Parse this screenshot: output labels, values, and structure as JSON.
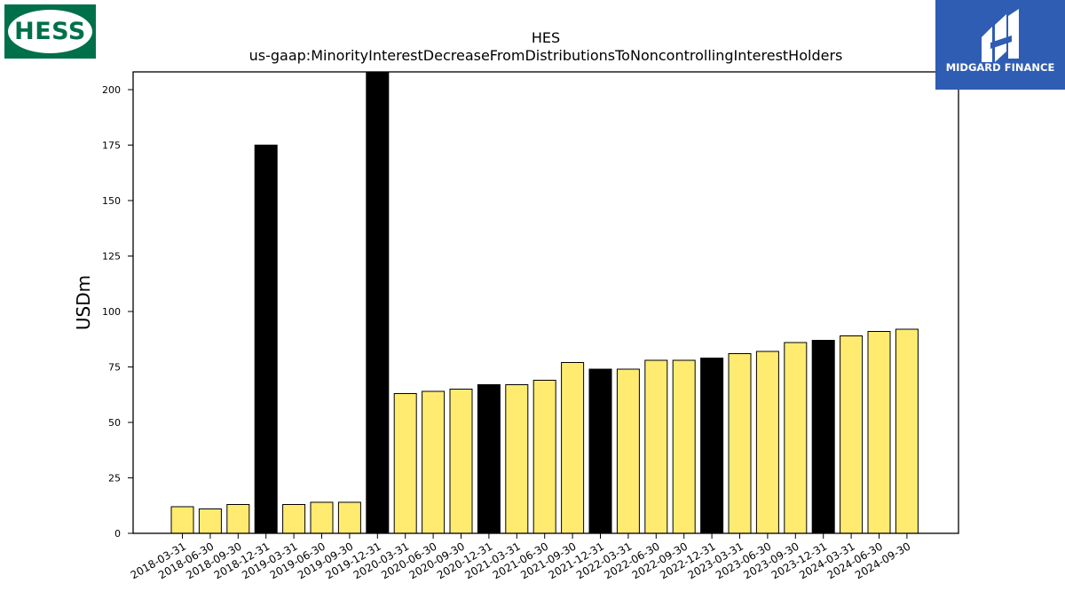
{
  "logos": {
    "left_text": "HESS",
    "left_color": "#00704a",
    "right_text": "MIDGARD FINANCE",
    "right_color": "#2f5db3"
  },
  "chart_data": {
    "type": "bar",
    "title": "HES",
    "subtitle": "us-gaap:MinorityInterestDecreaseFromDistributionsToNoncontrollingInterestHolders",
    "xlabel": "",
    "ylabel": "USDm",
    "ylim": [
      0,
      208
    ],
    "yticks": [
      0,
      25,
      50,
      75,
      100,
      125,
      150,
      175,
      200
    ],
    "categories": [
      "2018-03-31",
      "2018-06-30",
      "2018-09-30",
      "2018-12-31",
      "2019-03-31",
      "2019-06-30",
      "2019-09-30",
      "2019-12-31",
      "2020-03-31",
      "2020-06-30",
      "2020-09-30",
      "2020-12-31",
      "2021-03-31",
      "2021-06-30",
      "2021-09-30",
      "2021-12-31",
      "2022-03-31",
      "2022-06-30",
      "2022-09-30",
      "2022-12-31",
      "2023-03-31",
      "2023-06-30",
      "2023-09-30",
      "2023-12-31",
      "2024-03-31",
      "2024-06-30",
      "2024-09-30"
    ],
    "values": [
      12,
      11,
      13,
      175,
      13,
      14,
      14,
      208,
      63,
      64,
      65,
      67,
      67,
      69,
      77,
      74,
      74,
      78,
      78,
      79,
      81,
      82,
      86,
      87,
      89,
      91,
      92
    ],
    "bar_colors": [
      "#ffeb70",
      "#ffeb70",
      "#ffeb70",
      "#000000",
      "#ffeb70",
      "#ffeb70",
      "#ffeb70",
      "#000000",
      "#ffeb70",
      "#ffeb70",
      "#ffeb70",
      "#000000",
      "#ffeb70",
      "#ffeb70",
      "#ffeb70",
      "#000000",
      "#ffeb70",
      "#ffeb70",
      "#ffeb70",
      "#000000",
      "#ffeb70",
      "#ffeb70",
      "#ffeb70",
      "#000000",
      "#ffeb70",
      "#ffeb70",
      "#ffeb70"
    ],
    "grid": false,
    "legend": "none"
  }
}
